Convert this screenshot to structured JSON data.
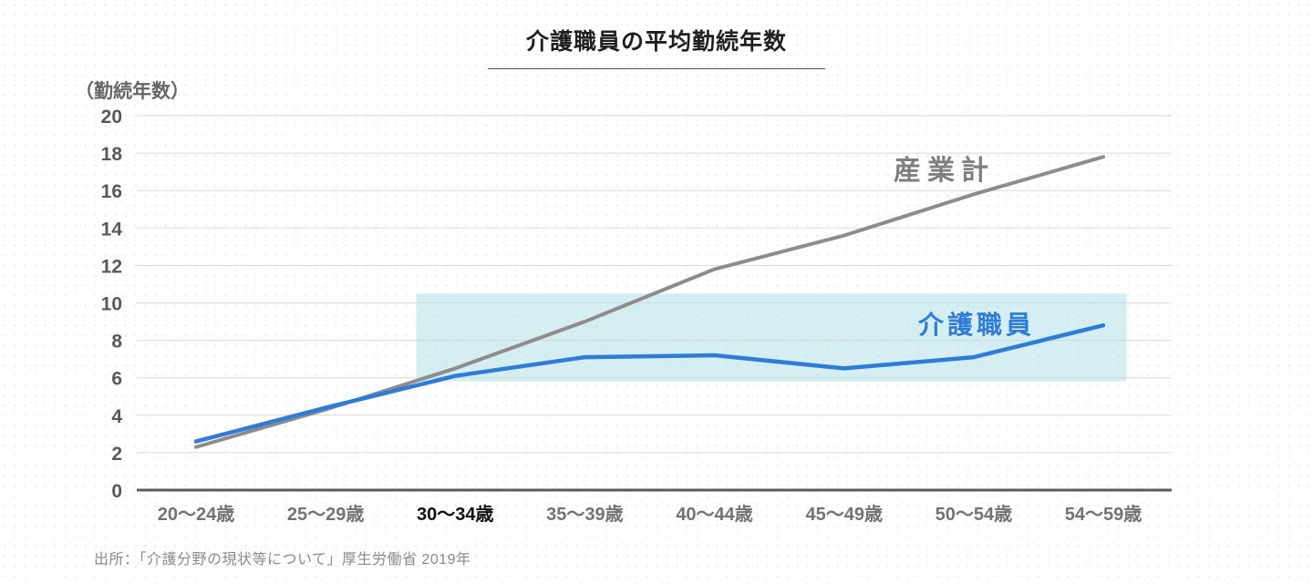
{
  "title": "介護職員の平均勤続年数",
  "y_axis_label": "（勤続年数）",
  "source": "出所：「介護分野の現状等について」厚生労働省 2019年",
  "chart_data": {
    "type": "line",
    "title": "介護職員の平均勤続年数",
    "ylabel": "（勤続年数）",
    "xlabel": "",
    "categories": [
      "20〜24歳",
      "25〜29歳",
      "30〜34歳",
      "35〜39歳",
      "40〜44歳",
      "45〜49歳",
      "50〜54歳",
      "54〜59歳"
    ],
    "emphasized_category": "30〜34歳",
    "series": [
      {
        "name": "産業計",
        "color": "#8c8c8c",
        "values": [
          2.3,
          4.3,
          6.5,
          9.0,
          11.8,
          13.6,
          15.8,
          17.8
        ]
      },
      {
        "name": "介護職員",
        "color": "#2e7cd6",
        "values": [
          2.6,
          4.4,
          6.1,
          7.1,
          7.2,
          6.5,
          7.1,
          8.8
        ]
      }
    ],
    "ylim": [
      0,
      20
    ],
    "ytick_step": 2,
    "grid": true,
    "legend_position": "inline-labels",
    "highlight_band": {
      "x_start_index": 2,
      "x_end_index": 7,
      "y_min": 5.8,
      "y_max": 10.5,
      "color": "#a9dde3",
      "opacity": 0.5
    },
    "colors": {
      "grid": "#d9d9d9",
      "baseline": "#595959",
      "tick_label": "#595959",
      "x_label": "#737373",
      "x_label_emphasis": "#111111"
    }
  }
}
